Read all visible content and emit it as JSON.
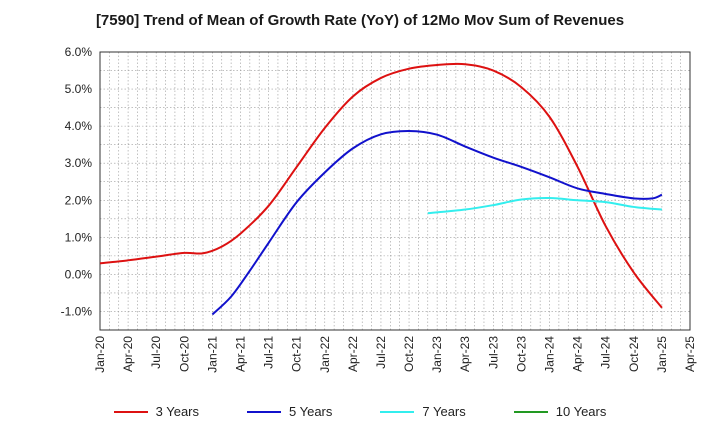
{
  "chart_data": {
    "type": "line",
    "title": "[7590]  Trend of Mean of Growth Rate (YoY) of 12Mo Mov Sum of Revenues",
    "xlabel": "",
    "ylabel": "",
    "ylim": [
      -1.5,
      6.0
    ],
    "yticks": [
      -1.0,
      0.0,
      1.0,
      2.0,
      3.0,
      4.0,
      5.0,
      6.0
    ],
    "ytick_labels": [
      "-1.0%",
      "0.0%",
      "1.0%",
      "2.0%",
      "3.0%",
      "4.0%",
      "5.0%",
      "6.0%"
    ],
    "x_axis": {
      "start": "2020-01",
      "end": "2025-04",
      "tick_labels": [
        "Jan-20",
        "Apr-20",
        "Jul-20",
        "Oct-20",
        "Jan-21",
        "Apr-21",
        "Jul-21",
        "Oct-21",
        "Jan-22",
        "Apr-22",
        "Jul-22",
        "Oct-22",
        "Jan-23",
        "Apr-23",
        "Jul-23",
        "Oct-23",
        "Jan-24",
        "Apr-24",
        "Jul-24",
        "Oct-24",
        "Jan-25",
        "Apr-25"
      ]
    },
    "grid": true,
    "series": [
      {
        "name": "3 Years",
        "color": "#dd1111",
        "points": [
          {
            "x": "2020-01",
            "y": 0.3
          },
          {
            "x": "2020-04",
            "y": 0.38
          },
          {
            "x": "2020-07",
            "y": 0.48
          },
          {
            "x": "2020-10",
            "y": 0.58
          },
          {
            "x": "2020-12",
            "y": 0.57
          },
          {
            "x": "2021-02",
            "y": 0.75
          },
          {
            "x": "2021-04",
            "y": 1.1
          },
          {
            "x": "2021-07",
            "y": 1.85
          },
          {
            "x": "2021-10",
            "y": 2.9
          },
          {
            "x": "2022-01",
            "y": 3.95
          },
          {
            "x": "2022-04",
            "y": 4.8
          },
          {
            "x": "2022-07",
            "y": 5.3
          },
          {
            "x": "2022-10",
            "y": 5.55
          },
          {
            "x": "2023-01",
            "y": 5.65
          },
          {
            "x": "2023-04",
            "y": 5.67
          },
          {
            "x": "2023-07",
            "y": 5.5
          },
          {
            "x": "2023-10",
            "y": 5.05
          },
          {
            "x": "2024-01",
            "y": 4.25
          },
          {
            "x": "2024-04",
            "y": 2.9
          },
          {
            "x": "2024-07",
            "y": 1.3
          },
          {
            "x": "2024-10",
            "y": 0.05
          },
          {
            "x": "2025-01",
            "y": -0.9
          }
        ]
      },
      {
        "name": "5 Years",
        "color": "#1111cc",
        "points": [
          {
            "x": "2021-01",
            "y": -1.08
          },
          {
            "x": "2021-03",
            "y": -0.6
          },
          {
            "x": "2021-05",
            "y": 0.1
          },
          {
            "x": "2021-07",
            "y": 0.85
          },
          {
            "x": "2021-10",
            "y": 1.95
          },
          {
            "x": "2022-01",
            "y": 2.75
          },
          {
            "x": "2022-04",
            "y": 3.4
          },
          {
            "x": "2022-07",
            "y": 3.78
          },
          {
            "x": "2022-10",
            "y": 3.87
          },
          {
            "x": "2023-01",
            "y": 3.77
          },
          {
            "x": "2023-04",
            "y": 3.45
          },
          {
            "x": "2023-07",
            "y": 3.15
          },
          {
            "x": "2023-10",
            "y": 2.9
          },
          {
            "x": "2024-01",
            "y": 2.62
          },
          {
            "x": "2024-04",
            "y": 2.32
          },
          {
            "x": "2024-07",
            "y": 2.17
          },
          {
            "x": "2024-10",
            "y": 2.05
          },
          {
            "x": "2024-12",
            "y": 2.05
          },
          {
            "x": "2025-01",
            "y": 2.15
          }
        ]
      },
      {
        "name": "7 Years",
        "color": "#33eeee",
        "points": [
          {
            "x": "2022-12",
            "y": 1.65
          },
          {
            "x": "2023-04",
            "y": 1.75
          },
          {
            "x": "2023-07",
            "y": 1.87
          },
          {
            "x": "2023-10",
            "y": 2.02
          },
          {
            "x": "2024-01",
            "y": 2.06
          },
          {
            "x": "2024-04",
            "y": 2.0
          },
          {
            "x": "2024-07",
            "y": 1.95
          },
          {
            "x": "2024-10",
            "y": 1.82
          },
          {
            "x": "2025-01",
            "y": 1.75
          }
        ]
      },
      {
        "name": "10 Years",
        "color": "#229922",
        "points": []
      }
    ],
    "legend_position": "bottom"
  }
}
